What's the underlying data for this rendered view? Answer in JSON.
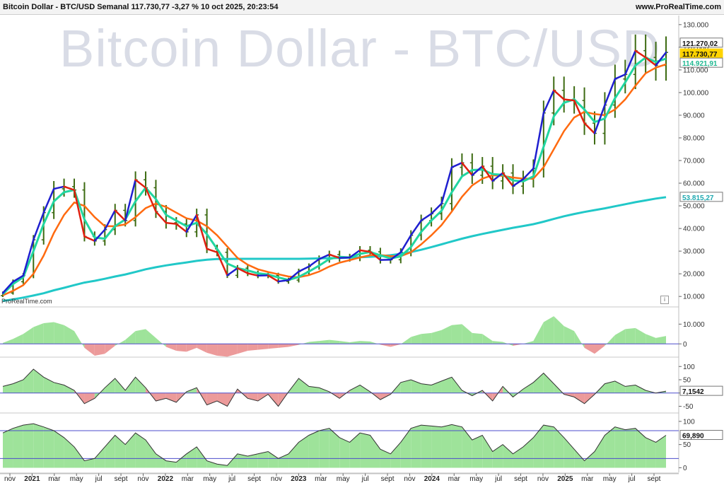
{
  "header": {
    "title": "Bitcoin Dollar - BTC/USD Semanal 117.730,77 -3,27 % 10 oct 2025, 20:23:54",
    "site": "www.ProRealTime.com"
  },
  "watermark": "Bitcoin Dollar - BTC/USD",
  "brand": "ProRealTime.com",
  "icons": {
    "info": "info-icon"
  },
  "colors": {
    "candle": "#3d6b12",
    "fast_ma": "#1f1fcf",
    "fast_ma_alt": "#e02010",
    "mid_ma": "#ff6a10",
    "slow_ma": "#21d6a0",
    "long_ma": "#21c8c8",
    "pos_fill": "#9ee39a",
    "neg_fill": "#ec9a9a",
    "grid_line": "#4d4dcc",
    "price_badge": "#ffd400"
  },
  "chart_data": [
    {
      "type": "line",
      "panel": "price",
      "title": "",
      "xlabel": "",
      "ylabel": "",
      "ylim": [
        6000,
        134000
      ],
      "grid": false,
      "y_ticks": [
        "130.000",
        "120.000",
        "110.000",
        "100.000",
        "90.000",
        "80.000",
        "70.000",
        "60.000",
        "50.000",
        "40.000",
        "30.000",
        "20.000",
        "10.000"
      ],
      "x_ticks": [
        "nov",
        "2021",
        "mar",
        "may",
        "jul",
        "sept",
        "nov",
        "2022",
        "mar",
        "may",
        "jul",
        "sept",
        "nov",
        "2023",
        "mar",
        "may",
        "jul",
        "sept",
        "nov",
        "2024",
        "mar",
        "may",
        "jul",
        "sept",
        "nov",
        "2025",
        "mar",
        "may",
        "jul",
        "sept"
      ],
      "badges": {
        "high": "121.270,02",
        "current": "117.730,77",
        "fast_ma": "114.921,91",
        "long_ma": "53.815,27"
      },
      "x": [
        "2020-10-19",
        "2020-11-16",
        "2020-12-14",
        "2021-01-11",
        "2021-02-08",
        "2021-03-08",
        "2021-04-05",
        "2021-05-03",
        "2021-05-31",
        "2021-06-28",
        "2021-07-26",
        "2021-08-23",
        "2021-09-20",
        "2021-10-18",
        "2021-11-15",
        "2021-12-13",
        "2022-01-10",
        "2022-02-07",
        "2022-03-07",
        "2022-04-04",
        "2022-05-02",
        "2022-05-30",
        "2022-06-27",
        "2022-07-25",
        "2022-08-22",
        "2022-09-19",
        "2022-10-17",
        "2022-11-14",
        "2022-12-12",
        "2023-01-09",
        "2023-02-06",
        "2023-03-06",
        "2023-04-03",
        "2023-05-01",
        "2023-05-29",
        "2023-06-26",
        "2023-07-24",
        "2023-08-21",
        "2023-09-18",
        "2023-10-16",
        "2023-11-13",
        "2023-12-11",
        "2024-01-08",
        "2024-02-05",
        "2024-03-04",
        "2024-04-01",
        "2024-04-29",
        "2024-05-27",
        "2024-06-24",
        "2024-07-22",
        "2024-08-19",
        "2024-09-16",
        "2024-10-14",
        "2024-11-11",
        "2024-12-09",
        "2025-01-06",
        "2025-02-03",
        "2025-03-03",
        "2025-03-31",
        "2025-04-28",
        "2025-05-26",
        "2025-06-23",
        "2025-07-21",
        "2025-08-18",
        "2025-09-15",
        "2025-10-06"
      ],
      "series": [
        {
          "values": [
            11500,
            16500,
            19200,
            35000,
            47000,
            57500,
            58500,
            57000,
            36500,
            34500,
            39500,
            48000,
            43500,
            61500,
            58000,
            47500,
            42500,
            42000,
            38500,
            46000,
            31000,
            29500,
            19300,
            22500,
            20200,
            19200,
            19300,
            16600,
            17200,
            21000,
            23200,
            26500,
            28500,
            27000,
            27200,
            30400,
            29700,
            26100,
            26200,
            29500,
            37000,
            43500,
            46500,
            51000,
            67000,
            69000,
            63500,
            67500,
            61000,
            64500,
            58700,
            61800,
            66500,
            91000,
            101000,
            97000,
            96500,
            86500,
            82000,
            94500,
            106000,
            108000,
            118500,
            115500,
            112000,
            117730
          ]
        },
        {
          "values": [
            11000,
            15500,
            18500,
            30000,
            42000,
            52000,
            56000,
            57000,
            44000,
            36000,
            35500,
            41000,
            44000,
            52000,
            58000,
            53000,
            46000,
            43500,
            41000,
            42500,
            37500,
            31000,
            24500,
            22500,
            21500,
            20200,
            19700,
            18400,
            17300,
            18600,
            21000,
            23600,
            26500,
            27500,
            27200,
            28800,
            29600,
            28200,
            26800,
            27700,
            31800,
            38500,
            43500,
            47800,
            56000,
            63000,
            65800,
            66000,
            64000,
            63700,
            61200,
            60800,
            63000,
            76000,
            89500,
            95500,
            97000,
            92500,
            87000,
            88500,
            97500,
            104500,
            112000,
            115500,
            113500,
            115000
          ]
        },
        {
          "values": [
            10500,
            12500,
            15000,
            20000,
            28000,
            38000,
            46000,
            51500,
            50000,
            45000,
            41000,
            41000,
            41800,
            45000,
            49000,
            51000,
            49500,
            47000,
            44500,
            43500,
            41000,
            37000,
            32000,
            27000,
            24000,
            22000,
            20800,
            19800,
            18800,
            18500,
            19400,
            21000,
            23200,
            24900,
            26000,
            27200,
            28200,
            28300,
            27800,
            27800,
            29500,
            33000,
            37000,
            41500,
            47500,
            54000,
            59000,
            62000,
            63500,
            63200,
            62500,
            62000,
            62000,
            67000,
            75000,
            83000,
            89000,
            91500,
            90500,
            90000,
            92500,
            97000,
            103000,
            108500,
            111000,
            112500
          ]
        },
        {
          "values": [
            8000,
            8700,
            9500,
            10400,
            11400,
            12700,
            13800,
            15000,
            16100,
            16900,
            17800,
            18800,
            19700,
            20800,
            22000,
            22900,
            23700,
            24400,
            25000,
            25700,
            26200,
            26500,
            26500,
            26600,
            26600,
            26600,
            26600,
            26600,
            26600,
            26600,
            26700,
            26800,
            26900,
            27000,
            27100,
            27300,
            27500,
            27800,
            28200,
            28800,
            29600,
            30600,
            31800,
            33000,
            34300,
            35500,
            36600,
            37600,
            38500,
            39400,
            40300,
            41100,
            41900,
            43000,
            44200,
            45400,
            46400,
            47300,
            48100,
            48900,
            49800,
            50700,
            51600,
            52400,
            53200,
            53815
          ]
        }
      ]
    },
    {
      "type": "area",
      "panel": "oscillator_1",
      "title": "",
      "ylim": [
        -6000,
        18000
      ],
      "y_ticks": [
        "10.000",
        "0"
      ],
      "values": [
        500,
        2500,
        5000,
        8500,
        10500,
        11000,
        9500,
        6500,
        -2000,
        -6000,
        -5000,
        -1000,
        2000,
        6500,
        7500,
        3000,
        -1500,
        -3500,
        -4000,
        -2000,
        -4500,
        -6000,
        -6500,
        -5000,
        -3500,
        -3000,
        -2500,
        -2000,
        -1500,
        -500,
        1000,
        1500,
        2000,
        1500,
        800,
        1500,
        1200,
        -400,
        -1500,
        -200,
        3500,
        5000,
        5500,
        7000,
        9500,
        10000,
        5500,
        5000,
        1500,
        1000,
        -1000,
        0,
        1500,
        11000,
        14000,
        9000,
        6500,
        -2000,
        -5000,
        -1000,
        4500,
        7500,
        8000,
        5000,
        3000,
        4000
      ]
    },
    {
      "type": "area",
      "panel": "oscillator_2",
      "title": "",
      "ylim": [
        -70,
        130
      ],
      "y_ticks": [
        "100",
        "50",
        "0",
        "-50"
      ],
      "badge": "7,1542",
      "values": [
        25,
        35,
        50,
        90,
        60,
        40,
        30,
        10,
        -40,
        -20,
        20,
        55,
        10,
        60,
        20,
        -30,
        -20,
        -35,
        5,
        20,
        -45,
        -30,
        -50,
        15,
        -20,
        -30,
        -5,
        -50,
        5,
        55,
        25,
        20,
        5,
        -20,
        10,
        30,
        5,
        -25,
        -5,
        40,
        50,
        35,
        30,
        45,
        60,
        10,
        -10,
        10,
        -30,
        25,
        -15,
        15,
        40,
        75,
        35,
        -5,
        -15,
        -40,
        -5,
        35,
        45,
        25,
        30,
        10,
        0,
        7
      ]
    },
    {
      "type": "area",
      "panel": "oscillator_3",
      "title": "",
      "ylim": [
        -10,
        115
      ],
      "y_ticks": [
        "100",
        "50",
        "0"
      ],
      "reference_lines": [
        80,
        20
      ],
      "badge": "69,890",
      "values": [
        75,
        85,
        92,
        95,
        88,
        80,
        65,
        45,
        15,
        20,
        45,
        70,
        50,
        75,
        60,
        30,
        15,
        12,
        30,
        45,
        15,
        8,
        5,
        30,
        25,
        30,
        35,
        20,
        30,
        55,
        70,
        80,
        85,
        65,
        55,
        75,
        70,
        40,
        30,
        55,
        85,
        92,
        90,
        88,
        93,
        88,
        60,
        70,
        35,
        50,
        30,
        45,
        65,
        92,
        88,
        65,
        40,
        15,
        35,
        70,
        88,
        82,
        85,
        65,
        55,
        70
      ]
    }
  ]
}
